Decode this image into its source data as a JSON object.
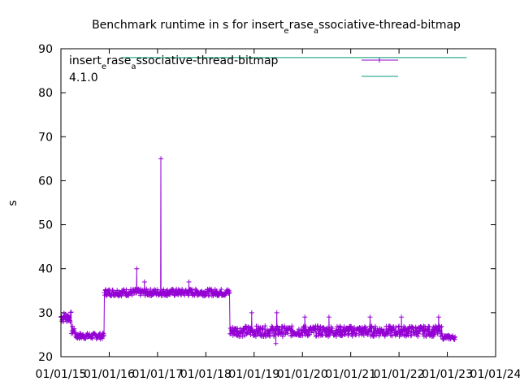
{
  "chart_data": {
    "type": "line",
    "title_main": "Benchmark runtime in s for insert",
    "title_sub1": "e",
    "title_mid": "rase",
    "title_sub2": "a",
    "title_end": "ssociative-thread-bitmap",
    "ylabel": "s",
    "xlabel": "",
    "ylim": [
      20,
      90
    ],
    "y_ticks": [
      20,
      30,
      40,
      50,
      60,
      70,
      80,
      90
    ],
    "x_ticks": [
      "01/01/15",
      "01/01/16",
      "01/01/17",
      "01/01/18",
      "01/01/19",
      "01/01/20",
      "01/01/21",
      "01/01/22",
      "01/01/23",
      "01/01/24"
    ],
    "xlim": [
      2015,
      2024
    ],
    "legend_placement": "top-right",
    "grid": false,
    "series": [
      {
        "name_main": "insert",
        "name_sub1": "e",
        "name_mid": "rase",
        "name_sub2": "a",
        "name_end": "ssociative-thread-bitmap",
        "color": "#9400d3",
        "style": "linespoints",
        "segments": [
          {
            "x0": 2015.0,
            "x1": 2015.22,
            "base": 29,
            "amp": 1.2
          },
          {
            "x0": 2015.22,
            "x1": 2015.3,
            "base": 26,
            "amp": 1.0
          },
          {
            "x0": 2015.3,
            "x1": 2015.9,
            "base": 24.7,
            "amp": 0.7
          },
          {
            "x0": 2015.9,
            "x1": 2018.5,
            "base": 34.6,
            "amp": 0.8
          },
          {
            "x0": 2018.5,
            "x1": 2022.9,
            "base": 25.8,
            "amp": 1.2
          },
          {
            "x0": 2022.9,
            "x1": 2023.17,
            "base": 24.4,
            "amp": 0.5
          }
        ],
        "spikes": [
          {
            "x": 2016.57,
            "y": 40
          },
          {
            "x": 2016.73,
            "y": 37
          },
          {
            "x": 2017.07,
            "y": 65
          },
          {
            "x": 2017.65,
            "y": 37
          },
          {
            "x": 2018.95,
            "y": 30
          },
          {
            "x": 2019.45,
            "y": 23
          },
          {
            "x": 2019.47,
            "y": 30
          },
          {
            "x": 2020.05,
            "y": 29
          },
          {
            "x": 2020.55,
            "y": 29
          },
          {
            "x": 2021.4,
            "y": 29
          },
          {
            "x": 2022.05,
            "y": 29
          },
          {
            "x": 2022.82,
            "y": 29
          }
        ]
      },
      {
        "name": "4.1.0",
        "color": "#009e73",
        "style": "hline",
        "value": 88,
        "x0": 2016.25,
        "x1": 2023.4
      }
    ]
  }
}
